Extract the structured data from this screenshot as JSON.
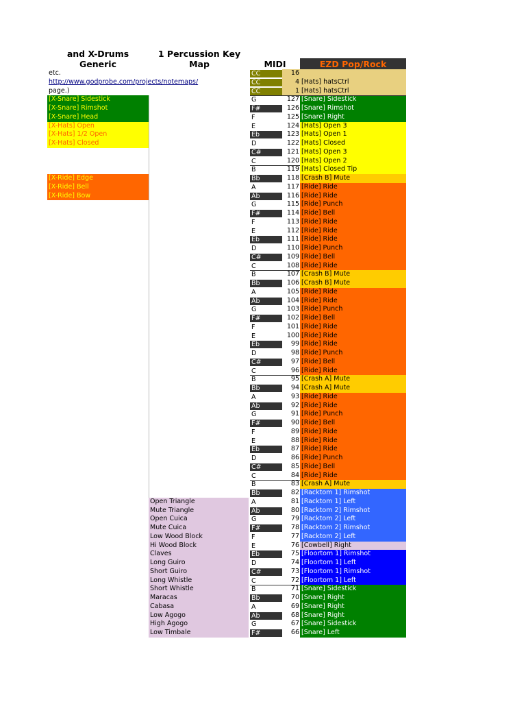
{
  "header": {
    "col1": "and X-Drums Generic",
    "col2": "1 Percussion Key Map",
    "midi": "MIDI",
    "ezd": "EZD Pop/Rock"
  },
  "intro": {
    "line1": "etc.",
    "link": "http://www.godprobe.com/projects/notemaps/",
    "line3": "page.)"
  },
  "colors": {
    "green": "#008000",
    "yellow": "#ffff00",
    "orange": "#ff6600",
    "gold": "#ffcc00",
    "lightgold": "#e8d080",
    "blue": "#3366ff",
    "darkblue": "#0000ff",
    "lavender": "#e0c8e0",
    "ezd_header_bg": "#333333",
    "ezd_header_text": "#ff6600"
  },
  "xdrums": [
    {
      "label": "[X-Snare] Sidestick",
      "bg": "#008000",
      "fg": "#ffff00"
    },
    {
      "label": "[X-Snare] Rimshot",
      "bg": "#008000",
      "fg": "#ffff00"
    },
    {
      "label": "[X-Snare] Head",
      "bg": "#008000",
      "fg": "#ffff00"
    },
    {
      "label": "[X-Hats] Open",
      "bg": "#ffff00",
      "fg": "#ff6600"
    },
    {
      "label": "[X-Hats] 1/2 Open",
      "bg": "#ffff00",
      "fg": "#ff6600"
    },
    {
      "label": "[X-Hats] Closed",
      "bg": "#ffff00",
      "fg": "#ff6600"
    },
    null,
    null,
    null,
    {
      "label": "[X-Ride] Edge",
      "bg": "#ff6600",
      "fg": "#ffff00"
    },
    {
      "label": "[X-Ride] Bell",
      "bg": "#ff6600",
      "fg": "#ffff00"
    },
    {
      "label": "[X-Ride] Bow",
      "bg": "#ff6600",
      "fg": "#ffff00"
    }
  ],
  "gm_labels": [
    "Open Triangle",
    "Mute Triangle",
    "Open Cuica",
    "Mute Cuica",
    "Low Wood Block",
    "Hi Wood Block",
    "Claves",
    "Long Guiro",
    "Short Guiro",
    "Long Whistle",
    "Short Whistle",
    "Maracas",
    "Cabasa",
    "Low Agogo",
    "High Agogo",
    "Low Timbale"
  ],
  "rows": [
    {
      "note": "CC",
      "num": "16",
      "ezd": ""
    },
    {
      "note": "CC",
      "num": "4",
      "ezd": "[Hats] hatsCtrl"
    },
    {
      "note": "CC",
      "num": "1",
      "ezd": "[Hats] hatsCtrl"
    },
    {
      "note": "G",
      "num": "127",
      "ezd": "[Snare] Sidestick"
    },
    {
      "note": "F#",
      "num": "126",
      "ezd": "[Snare] Rimshot"
    },
    {
      "note": "F",
      "num": "125",
      "ezd": "[Snare] Right"
    },
    {
      "note": "E",
      "num": "124",
      "ezd": "[Hats] Open 3"
    },
    {
      "note": "Eb",
      "num": "123",
      "ezd": "[Hats] Open 1"
    },
    {
      "note": "D",
      "num": "122",
      "ezd": "[Hats] Closed"
    },
    {
      "note": "C#",
      "num": "121",
      "ezd": "[Hats] Open 3"
    },
    {
      "note": "C",
      "num": "120",
      "ezd": "[Hats] Open 2"
    },
    {
      "note": "B",
      "num": "119",
      "ezd": "[Hats] Closed Tip"
    },
    {
      "note": "Bb",
      "num": "118",
      "ezd": "[Crash B] Mute"
    },
    {
      "note": "A",
      "num": "117",
      "ezd": "[Ride] Ride"
    },
    {
      "note": "Ab",
      "num": "116",
      "ezd": "[Ride] Ride"
    },
    {
      "note": "G",
      "num": "115",
      "ezd": "[Ride] Punch"
    },
    {
      "note": "F#",
      "num": "114",
      "ezd": "[Ride] Bell"
    },
    {
      "note": "F",
      "num": "113",
      "ezd": "[Ride] Ride"
    },
    {
      "note": "E",
      "num": "112",
      "ezd": "[Ride] Ride"
    },
    {
      "note": "Eb",
      "num": "111",
      "ezd": "[Ride] Ride"
    },
    {
      "note": "D",
      "num": "110",
      "ezd": "[Ride] Punch"
    },
    {
      "note": "C#",
      "num": "109",
      "ezd": "[Ride] Bell"
    },
    {
      "note": "C",
      "num": "108",
      "ezd": "[Ride] Ride"
    },
    {
      "note": "B",
      "num": "107",
      "ezd": "[Crash B] Mute"
    },
    {
      "note": "Bb",
      "num": "106",
      "ezd": "[Crash B] Mute"
    },
    {
      "note": "A",
      "num": "105",
      "ezd": "[Ride] Ride"
    },
    {
      "note": "Ab",
      "num": "104",
      "ezd": "[Ride] Ride"
    },
    {
      "note": "G",
      "num": "103",
      "ezd": "[Ride] Punch"
    },
    {
      "note": "F#",
      "num": "102",
      "ezd": "[Ride] Bell"
    },
    {
      "note": "F",
      "num": "101",
      "ezd": "[Ride] Ride"
    },
    {
      "note": "E",
      "num": "100",
      "ezd": "[Ride] Ride"
    },
    {
      "note": "Eb",
      "num": "99",
      "ezd": "[Ride] Ride"
    },
    {
      "note": "D",
      "num": "98",
      "ezd": "[Ride] Punch"
    },
    {
      "note": "C#",
      "num": "97",
      "ezd": "[Ride] Bell"
    },
    {
      "note": "C",
      "num": "96",
      "ezd": "[Ride] Ride"
    },
    {
      "note": "B",
      "num": "95",
      "ezd": "[Crash A] Mute"
    },
    {
      "note": "Bb",
      "num": "94",
      "ezd": "[Crash A] Mute"
    },
    {
      "note": "A",
      "num": "93",
      "ezd": "[Ride] Ride"
    },
    {
      "note": "Ab",
      "num": "92",
      "ezd": "[Ride] Ride"
    },
    {
      "note": "G",
      "num": "91",
      "ezd": "[Ride] Punch"
    },
    {
      "note": "F#",
      "num": "90",
      "ezd": "[Ride] Bell"
    },
    {
      "note": "F",
      "num": "89",
      "ezd": "[Ride] Ride"
    },
    {
      "note": "E",
      "num": "88",
      "ezd": "[Ride] Ride"
    },
    {
      "note": "Eb",
      "num": "87",
      "ezd": "[Ride] Ride"
    },
    {
      "note": "D",
      "num": "86",
      "ezd": "[Ride] Punch"
    },
    {
      "note": "C#",
      "num": "85",
      "ezd": "[Ride] Bell"
    },
    {
      "note": "C",
      "num": "84",
      "ezd": "[Ride] Ride"
    },
    {
      "note": "B",
      "num": "83",
      "ezd": "[Crash A] Mute"
    },
    {
      "note": "Bb",
      "num": "82",
      "ezd": "[Racktom 1] Rimshot"
    },
    {
      "note": "A",
      "num": "81",
      "ezd": "[Racktom 1] Left"
    },
    {
      "note": "Ab",
      "num": "80",
      "ezd": "[Racktom 2] Rimshot"
    },
    {
      "note": "G",
      "num": "79",
      "ezd": "[Racktom 2] Left"
    },
    {
      "note": "F#",
      "num": "78",
      "ezd": "[Racktom 2] Rimshot"
    },
    {
      "note": "F",
      "num": "77",
      "ezd": "[Racktom 2] Left"
    },
    {
      "note": "E",
      "num": "76",
      "ezd": "[Cowbell] Right"
    },
    {
      "note": "Eb",
      "num": "75",
      "ezd": "[Floortom 1] Rimshot"
    },
    {
      "note": "D",
      "num": "74",
      "ezd": "[Floortom 1] Left"
    },
    {
      "note": "C#",
      "num": "73",
      "ezd": "[Floortom 1] Rimshot"
    },
    {
      "note": "C",
      "num": "72",
      "ezd": "[Floortom 1] Left"
    },
    {
      "note": "B",
      "num": "71",
      "ezd": "[Snare] Sidestick"
    },
    {
      "note": "Bb",
      "num": "70",
      "ezd": "[Snare] Right"
    },
    {
      "note": "A",
      "num": "69",
      "ezd": "[Snare] Right"
    },
    {
      "note": "Ab",
      "num": "68",
      "ezd": "[Snare] Right"
    },
    {
      "note": "G",
      "num": "67",
      "ezd": "[Snare] Sidestick"
    },
    {
      "note": "F#",
      "num": "66",
      "ezd": "[Snare] Left"
    }
  ]
}
